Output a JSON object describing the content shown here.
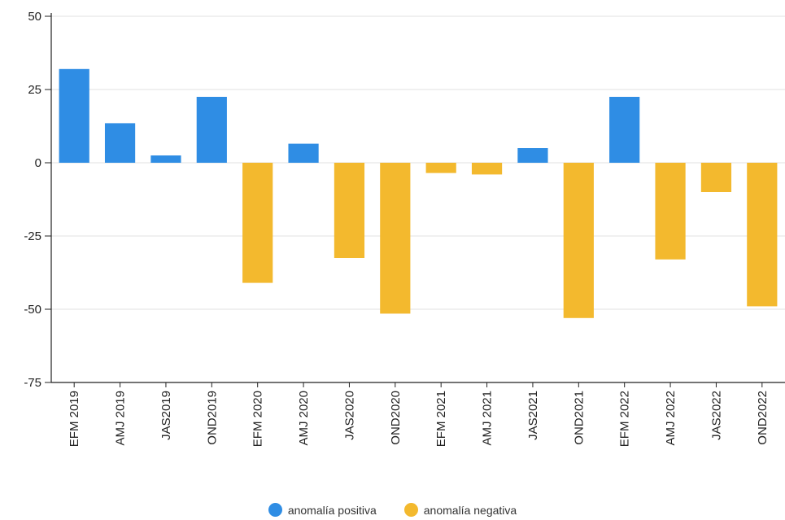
{
  "chart_data": {
    "type": "bar",
    "categories": [
      "EFM 2019",
      "AMJ 2019",
      "JAS2019",
      "OND2019",
      "EFM 2020",
      "AMJ 2020",
      "JAS2020",
      "OND2020",
      "EFM 2021",
      "AMJ 2021",
      "JAS2021",
      "OND2021",
      "EFM 2022",
      "AMJ 2022",
      "JAS2022",
      "OND2022"
    ],
    "values": [
      32,
      13.5,
      2.5,
      22.5,
      -41,
      6.5,
      -32.5,
      -51.5,
      -3.5,
      -4,
      5,
      -53,
      22.5,
      -33,
      -10,
      -49
    ],
    "ylim": [
      -75,
      50
    ],
    "yticks": [
      50,
      25,
      0,
      -25,
      -50,
      -75
    ],
    "ytick_labels": [
      "50",
      "25",
      "0",
      "-25",
      "-50",
      "-75"
    ],
    "grid": true,
    "legend_position": "bottom",
    "series": [
      {
        "name": "anomalía positiva",
        "color": "#2f8de4"
      },
      {
        "name": "anomalía negativa",
        "color": "#f3b92e"
      }
    ]
  }
}
